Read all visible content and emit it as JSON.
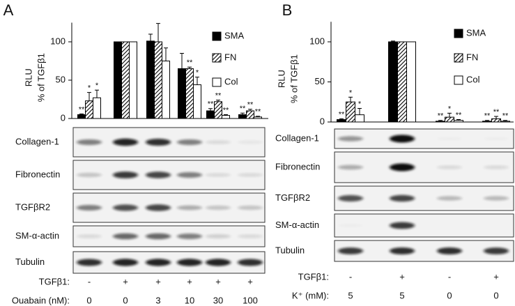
{
  "chart_data": [
    {
      "type": "bar",
      "panel": "A",
      "ylabel": [
        "RLU",
        "% of TGFβ1"
      ],
      "categories": [
        null,
        null,
        null,
        null,
        null,
        null
      ],
      "series": [
        {
          "name": "SMA",
          "color": "#000000",
          "fill": "solid",
          "values": [
            5,
            100,
            101,
            65,
            10,
            5
          ],
          "errors": [
            1,
            0,
            9,
            20,
            3,
            2
          ],
          "stars": [
            "**",
            null,
            null,
            null,
            "**",
            "**"
          ]
        },
        {
          "name": "FN",
          "color": "#000000",
          "fill": "hatch",
          "values": [
            23,
            100,
            100,
            65,
            22,
            10
          ],
          "errors": [
            11,
            0,
            24,
            2,
            2,
            2
          ],
          "stars": [
            "*",
            null,
            null,
            "**",
            "**",
            "**"
          ]
        },
        {
          "name": "Col",
          "color": "#000000",
          "fill": "open",
          "values": [
            27,
            100,
            75,
            44,
            4,
            2
          ],
          "errors": [
            10,
            0,
            17,
            10,
            1,
            1
          ],
          "stars": [
            "*",
            null,
            null,
            "*",
            "**",
            "**"
          ]
        }
      ],
      "ylim": [
        0,
        125
      ],
      "yticks": [
        0,
        50,
        100
      ],
      "legend": "top-right",
      "blots": [
        "Collagen-1",
        "Fibronectin",
        "TGFβR2",
        "SM-α-actin",
        "Tubulin"
      ],
      "conditions": [
        {
          "label": "TGFβ1:",
          "values": [
            "-",
            "+",
            "+",
            "+",
            "+",
            "+"
          ]
        },
        {
          "label": "Ouabain (nM):",
          "values": [
            "0",
            "0",
            "3",
            "10",
            "30",
            "100"
          ]
        }
      ]
    },
    {
      "type": "bar",
      "panel": "B",
      "ylabel": [
        "RLU",
        "% of TGFβ1"
      ],
      "categories": [
        null,
        null,
        null,
        null
      ],
      "series": [
        {
          "name": "SMA",
          "color": "#000000",
          "fill": "solid",
          "values": [
            3,
            100,
            1,
            1
          ],
          "errors": [
            1,
            1,
            1,
            1
          ],
          "stars": [
            "**",
            null,
            "**",
            "**"
          ]
        },
        {
          "name": "FN",
          "color": "#000000",
          "fill": "hatch",
          "values": [
            25,
            100,
            6,
            4
          ],
          "errors": [
            6,
            0,
            5,
            3
          ],
          "stars": [
            "*",
            null,
            "*",
            "**"
          ]
        },
        {
          "name": "Col",
          "color": "#000000",
          "fill": "open",
          "values": [
            9,
            100,
            2,
            1
          ],
          "errors": [
            8,
            0,
            1,
            1
          ],
          "stars": [
            "*",
            null,
            "**",
            "**"
          ]
        }
      ],
      "ylim": [
        0,
        125
      ],
      "yticks": [
        0,
        50,
        100
      ],
      "legend": "top-right",
      "blots": [
        "Collagen-1",
        "Fibronectin",
        "TGFβR2",
        "SM-α-actin",
        "Tubulin"
      ],
      "conditions": [
        {
          "label": "TGFβ1:",
          "values": [
            "-",
            "+",
            "-",
            "+"
          ]
        },
        {
          "label": "K⁺ (mM):",
          "values": [
            "5",
            "5",
            "0",
            "0"
          ]
        }
      ]
    }
  ]
}
